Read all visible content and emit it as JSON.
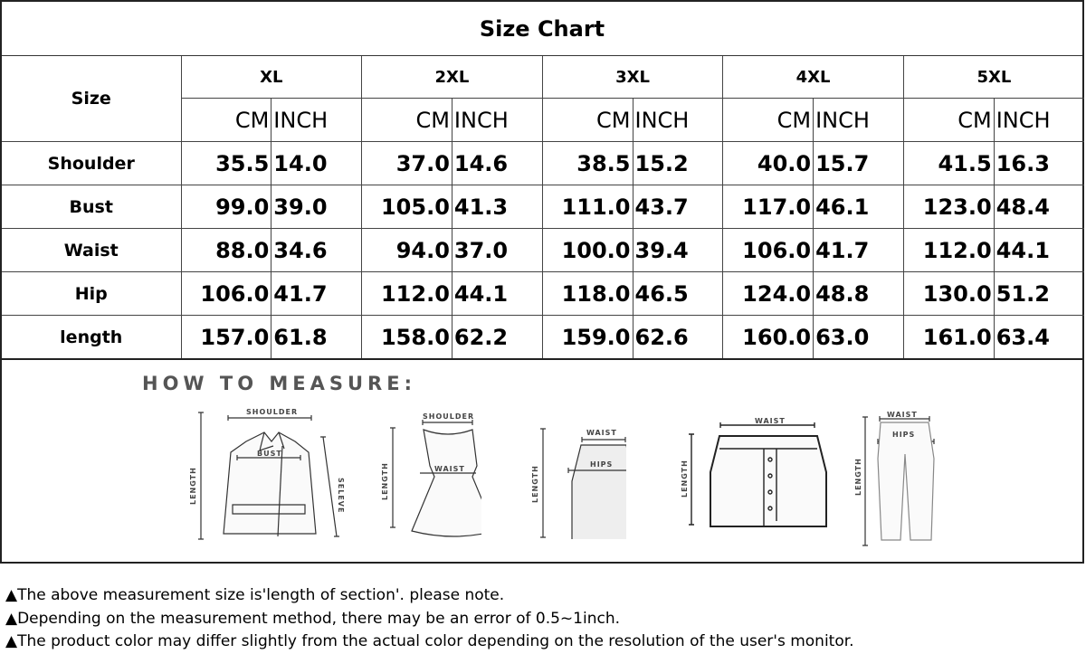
{
  "title": "Size Chart",
  "size_label": "Size",
  "sizes": [
    "XL",
    "2XL",
    "3XL",
    "4XL",
    "5XL"
  ],
  "units": {
    "cm": "CM",
    "inch": "INCH"
  },
  "rows": [
    {
      "label": "Shoulder",
      "values": [
        [
          "35.5",
          "14.0"
        ],
        [
          "37.0",
          "14.6"
        ],
        [
          "38.5",
          "15.2"
        ],
        [
          "40.0",
          "15.7"
        ],
        [
          "41.5",
          "16.3"
        ]
      ]
    },
    {
      "label": "Bust",
      "values": [
        [
          "99.0",
          "39.0"
        ],
        [
          "105.0",
          "41.3"
        ],
        [
          "111.0",
          "43.7"
        ],
        [
          "117.0",
          "46.1"
        ],
        [
          "123.0",
          "48.4"
        ]
      ]
    },
    {
      "label": "Waist",
      "values": [
        [
          "88.0",
          "34.6"
        ],
        [
          "94.0",
          "37.0"
        ],
        [
          "100.0",
          "39.4"
        ],
        [
          "106.0",
          "41.7"
        ],
        [
          "112.0",
          "44.1"
        ]
      ]
    },
    {
      "label": "Hip",
      "values": [
        [
          "106.0",
          "41.7"
        ],
        [
          "112.0",
          "44.1"
        ],
        [
          "118.0",
          "46.5"
        ],
        [
          "124.0",
          "48.8"
        ],
        [
          "130.0",
          "51.2"
        ]
      ]
    },
    {
      "label": "length",
      "values": [
        [
          "157.0",
          "61.8"
        ],
        [
          "158.0",
          "62.2"
        ],
        [
          "159.0",
          "62.6"
        ],
        [
          "160.0",
          "63.0"
        ],
        [
          "161.0",
          "63.4"
        ]
      ]
    }
  ],
  "measure": {
    "heading": "HOW TO MEASURE:",
    "labels": {
      "shoulder": "SHOULDER",
      "bust": "BUST",
      "length": "LENGTH",
      "sleeve": "SELEVE",
      "waist": "WAIST",
      "hips": "HIPS"
    }
  },
  "notes": [
    "▲The above measurement size is'length of section'. please note.",
    "▲Depending on the measurement method, there may be an error of 0.5~1inch.",
    "▲The product color may differ slightly from the actual color depending on the resolution of the user's monitor."
  ]
}
